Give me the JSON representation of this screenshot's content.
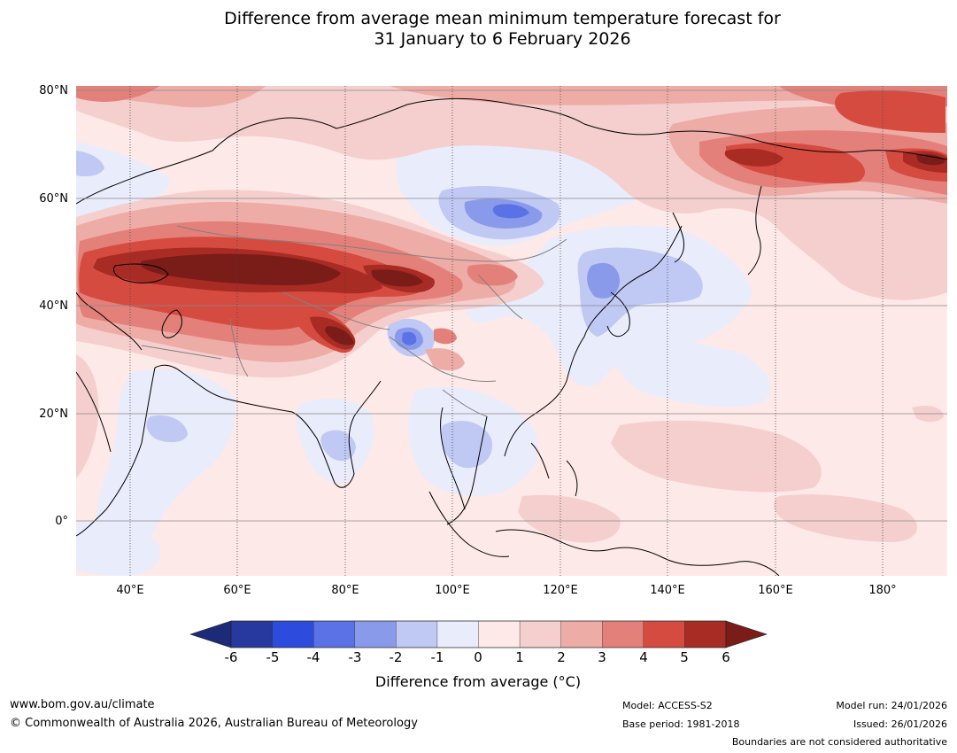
{
  "title": {
    "line1": "Difference from average mean minimum temperature forecast for",
    "line2": "31 January to 6 February 2026"
  },
  "lat_labels": [
    "80°N",
    "60°N",
    "40°N",
    "20°N",
    "0°"
  ],
  "lon_labels": [
    "40°E",
    "60°E",
    "80°E",
    "100°E",
    "120°E",
    "140°E",
    "160°E",
    "180°"
  ],
  "colorbar": {
    "ticks": [
      "-6",
      "-5",
      "-4",
      "-3",
      "-2",
      "-1",
      "0",
      "1",
      "2",
      "3",
      "4",
      "5",
      "6"
    ],
    "colors": [
      "#27389e",
      "#2d4bdd",
      "#5a72e6",
      "#8a9aeb",
      "#c0c8f4",
      "#e9ecfb",
      "#fde9e8",
      "#f5cfcd",
      "#eeaca7",
      "#e4807a",
      "#d64b40",
      "#a82b24"
    ],
    "under_color": "#1c2a78",
    "over_color": "#7a1c18",
    "title": "Difference from average (°C)"
  },
  "footer": {
    "website": "www.bom.gov.au/climate",
    "copyright": "© Commonwealth of Australia 2026, Australian Bureau of Meteorology",
    "model": "Model: ACCESS-S2",
    "base_period": "Base period: 1981-2018",
    "model_run": "Model run: 24/01/2026",
    "issued": "Issued: 26/01/2026",
    "disclaimer": "Boundaries are not considered authoritative"
  }
}
